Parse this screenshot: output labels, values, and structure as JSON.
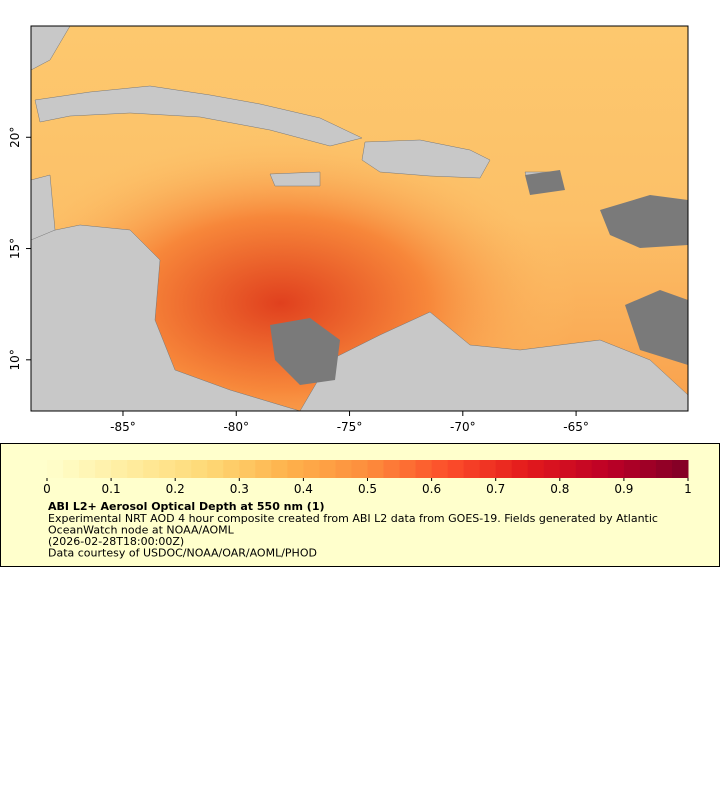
{
  "map": {
    "lon_range": [
      -89.06,
      -60.06
    ],
    "lat_range": [
      7.7,
      25.0
    ],
    "x_ticks": [
      {
        "value": -85,
        "label": "-85°"
      },
      {
        "value": -80,
        "label": "-80°"
      },
      {
        "value": -75,
        "label": "-75°"
      },
      {
        "value": -70,
        "label": "-70°"
      },
      {
        "value": -65,
        "label": "-65°"
      }
    ],
    "y_ticks": [
      {
        "value": 20,
        "label": "20°"
      },
      {
        "value": 15,
        "label": "15°"
      },
      {
        "value": 10,
        "label": "10°"
      }
    ]
  },
  "legend": {
    "range": [
      0,
      1
    ],
    "ticks": [
      0,
      0.1,
      0.2,
      0.3,
      0.4,
      0.5,
      0.6,
      0.7,
      0.8,
      0.9,
      1
    ],
    "colors": [
      "#ffffcc",
      "#ffeda0",
      "#fed976",
      "#feb24c",
      "#fd8d3c",
      "#fc4e2a",
      "#e31a1c",
      "#bd0026",
      "#800026"
    ],
    "title": "ABI L2+ Aerosol Optical Depth at 550 nm (1)",
    "lines": [
      "Experimental NRT AOD 4 hour composite created from ABI L2 data from GOES-19. Fields generated by Atlantic",
      "OceanWatch node at NOAA/AOML",
      "(2026-02-28T18:00:00Z)",
      "Data courtesy of USDOC/NOAA/OAR/AOML/PHOD"
    ]
  }
}
